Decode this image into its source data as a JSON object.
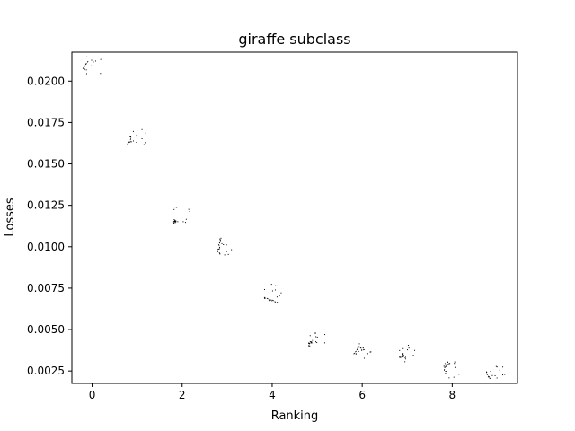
{
  "chart_data": {
    "type": "scatter",
    "title": "giraffe subclass",
    "xlabel": "Ranking",
    "ylabel": "Losses",
    "xlim": [
      -0.45,
      9.45
    ],
    "ylim": [
      0.00175,
      0.02175
    ],
    "xticks": [
      0,
      2,
      4,
      6,
      8
    ],
    "yticks": [
      0.0025,
      0.005,
      0.0075,
      0.01,
      0.0125,
      0.015,
      0.0175,
      0.02
    ],
    "ytick_labels": [
      "0.0025",
      "0.0050",
      "0.0075",
      "0.0100",
      "0.0125",
      "0.0150",
      "0.0175",
      "0.0200"
    ],
    "grid": false,
    "marker": "thumbnail-sketch",
    "x": [
      0,
      1,
      2,
      3,
      4,
      5,
      6,
      7,
      8,
      9
    ],
    "y": [
      0.021,
      0.0167,
      0.0119,
      0.01,
      0.0073,
      0.0043,
      0.0038,
      0.0036,
      0.0026,
      0.0025
    ]
  }
}
